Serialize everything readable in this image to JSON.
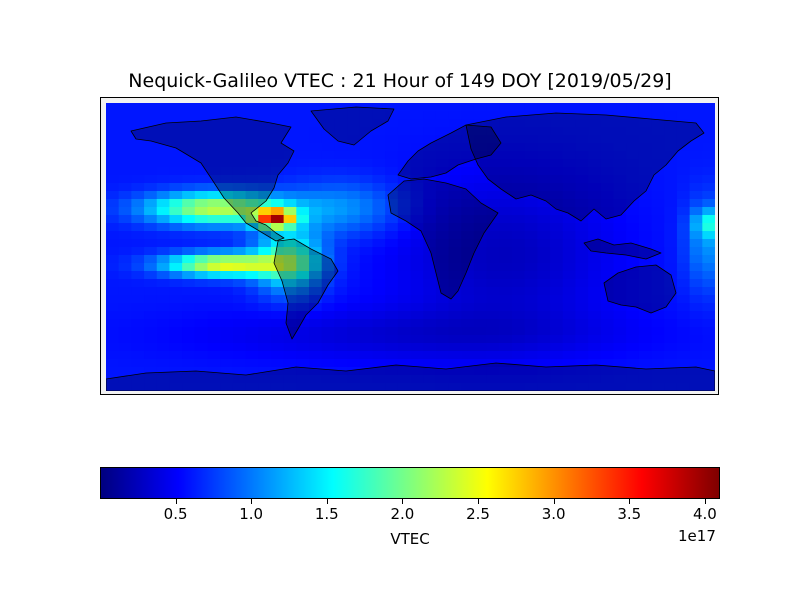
{
  "chart_data": {
    "type": "heatmap",
    "title": "Nequick-Galileo VTEC : 21 Hour of 149 DOY [2019/05/29]",
    "colormap": "jet",
    "colorbar": {
      "label": "VTEC",
      "ticks": [
        0.5,
        1.0,
        1.5,
        2.0,
        2.5,
        3.0,
        3.5,
        4.0
      ],
      "tick_labels": [
        "0.5",
        "1.0",
        "1.5",
        "2.0",
        "2.5",
        "3.0",
        "3.5",
        "4.0"
      ],
      "offset_label": "1e17",
      "range": [
        0.0,
        4.1
      ],
      "placement": "bottom"
    },
    "x_range_lon": [
      -180,
      180
    ],
    "y_range_lat": [
      -90,
      90
    ],
    "grid_resolution_deg": [
      7.5,
      5
    ],
    "baseline_value": 0.6,
    "features": [
      {
        "name": "peak-caribbean",
        "lon": -80,
        "lat": 18,
        "value": 4.05
      },
      {
        "name": "band-north-pacific",
        "lon": -115,
        "lat": 25,
        "value": 2.4
      },
      {
        "name": "band-south-pacific",
        "lon": -110,
        "lat": -10,
        "value": 2.5
      },
      {
        "name": "band-south-america",
        "lon": -70,
        "lat": -15,
        "value": 1.6
      },
      {
        "name": "band-east-pacific-edge",
        "lon": 175,
        "lat": 15,
        "value": 1.5
      },
      {
        "name": "atlantic",
        "lon": -30,
        "lat": 25,
        "value": 1.0
      },
      {
        "name": "africa-indian-ocean",
        "lon": 60,
        "lat": -10,
        "value": 0.3
      }
    ]
  }
}
